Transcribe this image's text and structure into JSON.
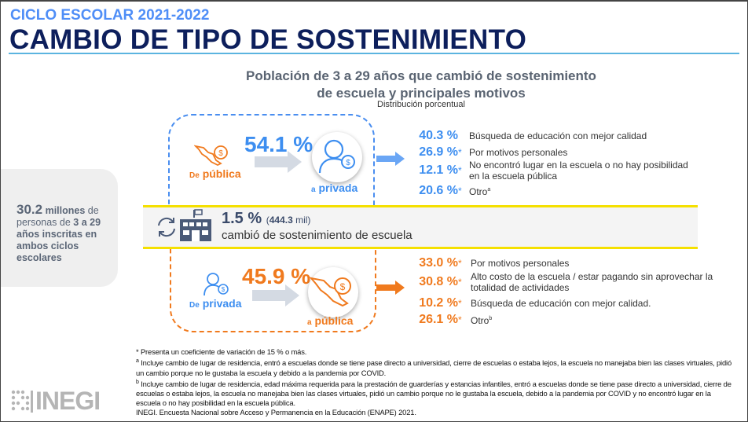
{
  "header": {
    "kicker": "CICLO ESCOLAR 2021-2022",
    "title": "CAMBIO DE TIPO DE SOSTENIMIENTO"
  },
  "subtitle": {
    "line1": "Población de 3 a 29 años que cambió de sostenimiento",
    "line2": "de escuela y principales motivos",
    "note": "Distribución porcentual"
  },
  "summary": {
    "value": "30.2",
    "unit": "millones",
    "t1": "de",
    "t2": "personas de",
    "age": "3 a 29",
    "t3": "años inscritas en ambos ciclos escolares"
  },
  "band": {
    "pct": "1.5 %",
    "abs_open": "(",
    "abs_value": "444.3",
    "abs_unit": "mil)",
    "text": "cambió de sostenimiento de escuela"
  },
  "public_to_private": {
    "from_prefix": "De",
    "from": "pública",
    "pct": "54.1 %",
    "to_prefix": "a",
    "to": "privada",
    "reasons": [
      {
        "pct": "40.3 %",
        "mark": "",
        "text": "Búsqueda de educación con mejor calidad"
      },
      {
        "pct": "26.9 %",
        "mark": "*",
        "text": "Por motivos personales"
      },
      {
        "pct": "12.1 %",
        "mark": "*",
        "text": "No encontró lugar en la escuela o no hay posibilidad en la escuela pública"
      },
      {
        "pct": "20.6 %",
        "mark": "*",
        "text": "Otro",
        "sup": "a"
      }
    ]
  },
  "private_to_public": {
    "from_prefix": "De",
    "from": "privada",
    "pct": "45.9 %",
    "to_prefix": "a",
    "to": "pública",
    "reasons": [
      {
        "pct": "33.0 %",
        "mark": "*",
        "text": "Por motivos personales"
      },
      {
        "pct": "30.8 %",
        "mark": "*",
        "text": "Alto costo de la escuela / estar pagando sin aprovechar la totalidad de actividades"
      },
      {
        "pct": "10.2 %",
        "mark": "*",
        "text": "Búsqueda de educación con mejor calidad."
      },
      {
        "pct": "26.1 %",
        "mark": "*",
        "text": "Otro",
        "sup": "b"
      }
    ]
  },
  "footnotes": {
    "star": "* Presenta un coeficiente de variación de 15 % o más.",
    "a_mark": "a",
    "a": "Incluye cambio de lugar de residencia, entró a escuelas donde se tiene pase directo a universidad, cierre de escuelas o estaba lejos, la escuela no manejaba bien las clases virtuales, pidió un cambio porque no le gustaba la escuela y debido a la pandemia por COVID.",
    "b_mark": "b",
    "b": "Incluye cambio de lugar de residencia, edad máxima requerida para la prestación de guarderías y estancias infantiles, entró a escuelas donde se tiene pase directo a universidad, cierre de escuelas o estaba lejos, la escuela no manejaba bien las clases virtuales, pidió un cambio porque no le gustaba la escuela, debido a la pandemia por COVID y no encontró lugar en la escuela o no hay posibilidad en la escuela pública.",
    "source": "INEGI. Encuesta Nacional sobre Acceso y Permanencia en la Educación (ENAPE) 2021."
  },
  "logo": {
    "text": "INEGI"
  },
  "colors": {
    "blue": "#3d8ef0",
    "orange": "#f07a1e",
    "navy": "#0d1f5c",
    "yellow": "#f5e000"
  }
}
